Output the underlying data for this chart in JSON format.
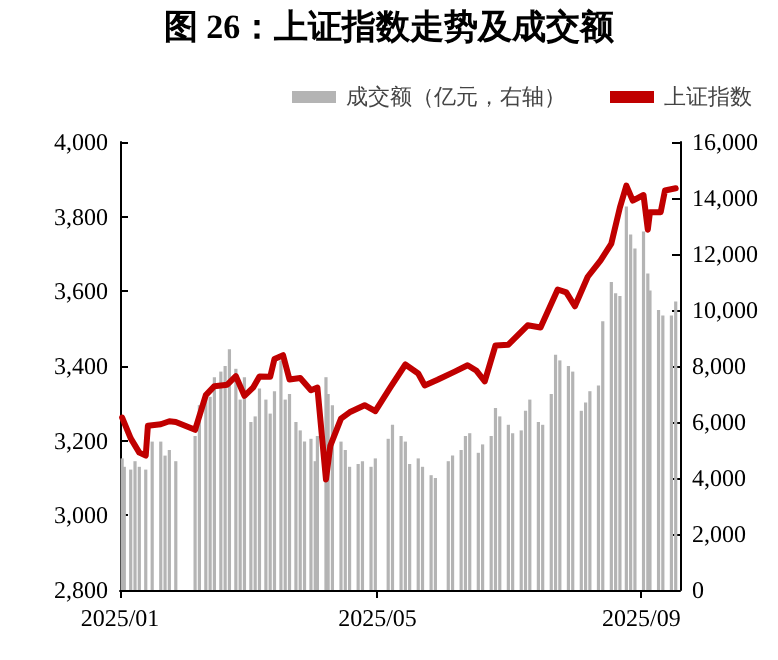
{
  "chart_data": {
    "type": "bar",
    "title": "图 26：上证指数走势及成交额",
    "legend": "top right",
    "grid": false,
    "marker": "none",
    "line_style": "solid",
    "xlim": [
      "2025-01-01",
      "2025-09-19"
    ],
    "xticks": [
      {
        "value": "2025-01-01",
        "label": "2025/01"
      },
      {
        "value": "2025-05-01",
        "label": "2025/05"
      },
      {
        "value": "2025-09-01",
        "label": "2025/09"
      }
    ],
    "ylim": [
      2800,
      4000
    ],
    "yticks": [
      {
        "value": 2800,
        "label": "2,800"
      },
      {
        "value": 3000,
        "label": "3,000"
      },
      {
        "value": 3200,
        "label": "3,200"
      },
      {
        "value": 3400,
        "label": "3,400"
      },
      {
        "value": 3600,
        "label": "3,600"
      },
      {
        "value": 3800,
        "label": "3,800"
      },
      {
        "value": 4000,
        "label": "4,000"
      }
    ],
    "y2lim": [
      0,
      16000
    ],
    "y2ticks": [
      0,
      {
        "value": 2000,
        "label": "2,000"
      },
      {
        "value": 4000,
        "label": "4,000"
      },
      {
        "value": 6000,
        "label": "6,000"
      },
      {
        "value": 8000,
        "label": "8,000"
      },
      {
        "value": 10000,
        "label": "10,000"
      },
      {
        "value": 12000,
        "label": "12,000"
      },
      {
        "value": 14000,
        "label": "14,000"
      },
      {
        "value": 16000,
        "label": "16,000"
      }
    ],
    "series": [
      {
        "name": "成交额（亿元，右轴）",
        "axis": "y2",
        "color": "#b4b4b4",
        "x": [
          "2025-01-02",
          "2025-01-03",
          "2025-01-06",
          "2025-01-08",
          "2025-01-10",
          "2025-01-13",
          "2025-01-14",
          "2025-01-16",
          "2025-01-20",
          "2025-01-22",
          "2025-01-24",
          "2025-01-27",
          "2025-02-05",
          "2025-02-07",
          "2025-02-10",
          "2025-02-12",
          "2025-02-14",
          "2025-02-17",
          "2025-02-19",
          "2025-02-21",
          "2025-02-24",
          "2025-02-26",
          "2025-02-28",
          "2025-03-03",
          "2025-03-05",
          "2025-03-07",
          "2025-03-10",
          "2025-03-12",
          "2025-03-14",
          "2025-03-17",
          "2025-03-19",
          "2025-03-21",
          "2025-03-24",
          "2025-03-26",
          "2025-03-28",
          "2025-03-31",
          "2025-04-02",
          "2025-04-03",
          "2025-04-07",
          "2025-04-08",
          "2025-04-10",
          "2025-04-14",
          "2025-04-16",
          "2025-04-18",
          "2025-04-22",
          "2025-04-24",
          "2025-04-28",
          "2025-04-30",
          "2025-05-06",
          "2025-05-08",
          "2025-05-12",
          "2025-05-14",
          "2025-05-16",
          "2025-05-20",
          "2025-05-22",
          "2025-05-26",
          "2025-05-28",
          "2025-06-03",
          "2025-06-05",
          "2025-06-09",
          "2025-06-11",
          "2025-06-13",
          "2025-06-17",
          "2025-06-19",
          "2025-06-23",
          "2025-06-25",
          "2025-06-27",
          "2025-07-01",
          "2025-07-03",
          "2025-07-07",
          "2025-07-09",
          "2025-07-11",
          "2025-07-15",
          "2025-07-17",
          "2025-07-21",
          "2025-07-23",
          "2025-07-25",
          "2025-07-29",
          "2025-07-31",
          "2025-08-04",
          "2025-08-06",
          "2025-08-08",
          "2025-08-12",
          "2025-08-14",
          "2025-08-18",
          "2025-08-20",
          "2025-08-22",
          "2025-08-25",
          "2025-08-27",
          "2025-08-29",
          "2025-09-02",
          "2025-09-04",
          "2025-09-05",
          "2025-09-09",
          "2025-09-11",
          "2025-09-15",
          "2025-09-17"
        ],
        "values": [
          4700,
          4400,
          4300,
          4600,
          4400,
          4300,
          null,
          5300,
          5300,
          4800,
          5000,
          4600,
          5500,
          6600,
          7000,
          6900,
          7600,
          7800,
          8000,
          8600,
          7900,
          6800,
          7600,
          6000,
          6200,
          7200,
          6800,
          6300,
          7100,
          8200,
          6800,
          7000,
          6000,
          5700,
          5300,
          5400,
          4600,
          5500,
          7600,
          7000,
          6600,
          5300,
          5000,
          4400,
          4500,
          4600,
          4400,
          4700,
          5400,
          5900,
          5500,
          5300,
          4500,
          4700,
          4400,
          4100,
          4000,
          4600,
          4800,
          5000,
          5500,
          5600,
          4900,
          5200,
          5500,
          6500,
          6200,
          5900,
          5600,
          5700,
          6400,
          6800,
          6000,
          5900,
          7000,
          8400,
          8200,
          8000,
          7800,
          6400,
          6700,
          7100,
          7300,
          9600,
          11000,
          10600,
          10500,
          13700,
          12700,
          12200,
          12800,
          11300,
          10700,
          10000,
          9800,
          9800,
          10300
        ]
      },
      {
        "name": "上证指数",
        "type": "line",
        "color": "#c00000",
        "x": [
          "2025-01-02",
          "2025-01-06",
          "2025-01-10",
          "2025-01-13",
          "2025-01-14",
          "2025-01-20",
          "2025-01-24",
          "2025-01-27",
          "2025-02-05",
          "2025-02-10",
          "2025-02-14",
          "2025-02-20",
          "2025-02-24",
          "2025-02-28",
          "2025-03-04",
          "2025-03-07",
          "2025-03-12",
          "2025-03-14",
          "2025-03-18",
          "2025-03-21",
          "2025-03-26",
          "2025-03-31",
          "2025-04-03",
          "2025-04-07",
          "2025-04-09",
          "2025-04-14",
          "2025-04-18",
          "2025-04-25",
          "2025-04-30",
          "2025-05-07",
          "2025-05-14",
          "2025-05-20",
          "2025-05-23",
          "2025-05-29",
          "2025-06-06",
          "2025-06-12",
          "2025-06-16",
          "2025-06-20",
          "2025-06-25",
          "2025-07-01",
          "2025-07-10",
          "2025-07-16",
          "2025-07-24",
          "2025-07-28",
          "2025-08-01",
          "2025-08-07",
          "2025-08-13",
          "2025-08-18",
          "2025-08-22",
          "2025-08-25",
          "2025-08-28",
          "2025-09-02",
          "2025-09-04",
          "2025-09-05",
          "2025-09-10",
          "2025-09-12",
          "2025-09-17"
        ],
        "values": [
          3262,
          3206,
          3168,
          3160,
          3240,
          3244,
          3252,
          3250,
          3229,
          3322,
          3346,
          3350,
          3373,
          3320,
          3342,
          3372,
          3371,
          3419,
          3429,
          3364,
          3368,
          3335,
          3342,
          3096,
          3186,
          3259,
          3276,
          3295,
          3279,
          3343,
          3404,
          3380,
          3348,
          3363,
          3385,
          3402,
          3388,
          3359,
          3455,
          3457,
          3509,
          3503,
          3605,
          3597,
          3560,
          3639,
          3683,
          3728,
          3825,
          3883,
          3843,
          3858,
          3765,
          3812,
          3812,
          3870,
          3876
        ]
      }
    ]
  }
}
